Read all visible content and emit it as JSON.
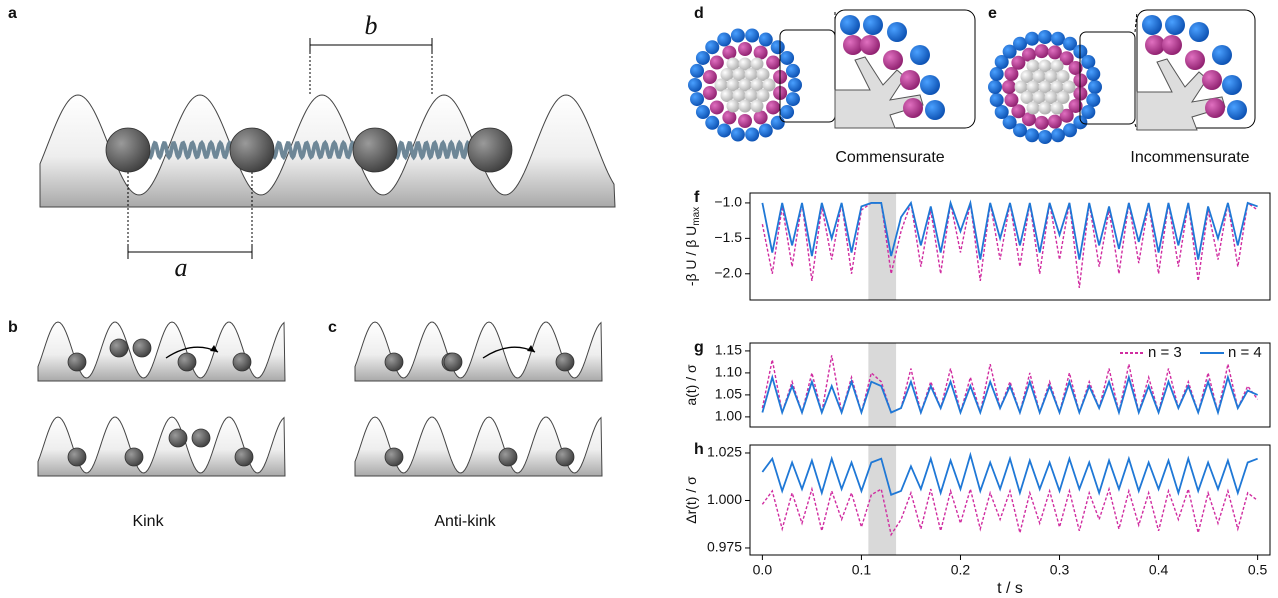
{
  "labels": {
    "panel_a": "a",
    "panel_b": "b",
    "panel_c": "c",
    "panel_d": "d",
    "panel_e": "e",
    "spacing_a": "a",
    "spacing_b": "b",
    "kink": "Kink",
    "anti_kink": "Anti-kink",
    "commensurate": "Commensurate",
    "incommensurate": "Incommensurate"
  },
  "chart_data": [
    {
      "type": "line",
      "panel": "f",
      "ylabel": "-β U / β U",
      "ylabel_sub": "max",
      "xlim": [
        -0.0125,
        0.5125
      ],
      "ylim": [
        -2.37,
        -0.86
      ],
      "yticks": [
        {
          "value": -1.0,
          "label": "−1.0"
        },
        {
          "value": -1.5,
          "label": "−1.5"
        },
        {
          "value": -2.0,
          "label": "−2.0"
        }
      ],
      "highlight": [
        0.107,
        0.135
      ],
      "x": [
        0,
        0.01,
        0.02,
        0.03,
        0.04,
        0.05,
        0.06,
        0.07,
        0.08,
        0.09,
        0.1,
        0.11,
        0.12,
        0.13,
        0.14,
        0.15,
        0.16,
        0.17,
        0.18,
        0.19,
        0.2,
        0.21,
        0.22,
        0.23,
        0.24,
        0.25,
        0.26,
        0.27,
        0.28,
        0.29,
        0.3,
        0.31,
        0.32,
        0.33,
        0.34,
        0.35,
        0.36,
        0.37,
        0.38,
        0.39,
        0.4,
        0.41,
        0.42,
        0.43,
        0.44,
        0.45,
        0.46,
        0.47,
        0.48,
        0.49,
        0.5
      ],
      "series": [
        {
          "color": "#d02ca0",
          "dashed": true,
          "values": [
            -1.3,
            -2.0,
            -1.05,
            -1.9,
            -1.0,
            -2.1,
            -1.05,
            -1.8,
            -1.0,
            -2.0,
            -1.1,
            -1.0,
            -1.0,
            -2.0,
            -1.4,
            -1.0,
            -1.9,
            -1.1,
            -2.0,
            -1.0,
            -1.7,
            -1.0,
            -2.1,
            -1.0,
            -1.8,
            -1.0,
            -1.9,
            -1.0,
            -2.0,
            -1.0,
            -1.8,
            -1.0,
            -2.2,
            -1.0,
            -1.9,
            -1.1,
            -2.0,
            -1.0,
            -1.85,
            -1.0,
            -2.0,
            -1.0,
            -1.9,
            -1.0,
            -2.1,
            -1.1,
            -1.8,
            -1.0,
            -1.9,
            -1.0,
            -1.1
          ]
        },
        {
          "color": "#1f78d6",
          "dashed": false,
          "values": [
            -1.0,
            -1.7,
            -1.0,
            -1.6,
            -1.0,
            -1.75,
            -1.0,
            -1.5,
            -1.0,
            -1.7,
            -1.05,
            -1.0,
            -1.0,
            -1.75,
            -1.2,
            -1.0,
            -1.6,
            -1.05,
            -1.7,
            -1.0,
            -1.4,
            -1.0,
            -1.8,
            -1.0,
            -1.5,
            -1.0,
            -1.6,
            -1.0,
            -1.7,
            -1.0,
            -1.45,
            -1.0,
            -1.8,
            -1.0,
            -1.6,
            -1.05,
            -1.65,
            -1.0,
            -1.55,
            -1.0,
            -1.7,
            -1.0,
            -1.6,
            -1.0,
            -1.8,
            -1.05,
            -1.5,
            -1.0,
            -1.6,
            -1.0,
            -1.05
          ]
        }
      ]
    },
    {
      "type": "line",
      "panel": "g",
      "ylabel": "a(t) / σ",
      "xlim": [
        -0.0125,
        0.5125
      ],
      "ylim": [
        0.977,
        1.168
      ],
      "yticks": [
        {
          "value": 1.0,
          "label": "1.00"
        },
        1.05,
        {
          "value": 1.1,
          "label": "1.10"
        },
        1.15
      ],
      "highlight": [
        0.107,
        0.135
      ],
      "legend": "upper right",
      "x": [
        0,
        0.01,
        0.02,
        0.03,
        0.04,
        0.05,
        0.06,
        0.07,
        0.08,
        0.09,
        0.1,
        0.11,
        0.12,
        0.13,
        0.14,
        0.15,
        0.16,
        0.17,
        0.18,
        0.19,
        0.2,
        0.21,
        0.22,
        0.23,
        0.24,
        0.25,
        0.26,
        0.27,
        0.28,
        0.29,
        0.3,
        0.31,
        0.32,
        0.33,
        0.34,
        0.35,
        0.36,
        0.37,
        0.38,
        0.39,
        0.4,
        0.41,
        0.42,
        0.43,
        0.44,
        0.45,
        0.46,
        0.47,
        0.48,
        0.49,
        0.5
      ],
      "series": [
        {
          "name": "n = 3",
          "color": "#d02ca0",
          "dashed": true,
          "values": [
            1.02,
            1.13,
            1.01,
            1.08,
            1.01,
            1.1,
            1.01,
            1.14,
            1.01,
            1.09,
            1.01,
            1.1,
            1.08,
            1.01,
            1.02,
            1.11,
            1.01,
            1.08,
            1.02,
            1.11,
            1.01,
            1.09,
            1.01,
            1.12,
            1.02,
            1.08,
            1.01,
            1.1,
            1.01,
            1.08,
            1.01,
            1.1,
            1.01,
            1.08,
            1.02,
            1.11,
            1.01,
            1.12,
            1.01,
            1.09,
            1.01,
            1.11,
            1.02,
            1.08,
            1.01,
            1.1,
            1.01,
            1.12,
            1.02,
            1.07,
            1.04
          ]
        },
        {
          "name": "n = 4",
          "color": "#1f78d6",
          "dashed": false,
          "values": [
            1.01,
            1.09,
            1.01,
            1.07,
            1.01,
            1.08,
            1.01,
            1.07,
            1.01,
            1.08,
            1.01,
            1.08,
            1.07,
            1.01,
            1.02,
            1.08,
            1.01,
            1.07,
            1.02,
            1.08,
            1.01,
            1.07,
            1.01,
            1.08,
            1.02,
            1.07,
            1.01,
            1.08,
            1.01,
            1.07,
            1.01,
            1.08,
            1.01,
            1.07,
            1.02,
            1.08,
            1.01,
            1.09,
            1.01,
            1.07,
            1.01,
            1.08,
            1.02,
            1.07,
            1.01,
            1.08,
            1.01,
            1.09,
            1.02,
            1.06,
            1.05
          ]
        }
      ]
    },
    {
      "type": "line",
      "panel": "h",
      "ylabel": "Δr(t) / σ",
      "xlabel": "t / s",
      "xlim": [
        -0.0125,
        0.5125
      ],
      "ylim": [
        0.9713,
        1.0292
      ],
      "xticks": [
        {
          "value": 0,
          "label": "0.0"
        },
        0.1,
        0.2,
        0.3,
        0.4,
        0.5
      ],
      "yticks": [
        0.975,
        {
          "value": 1.0,
          "label": "1.000"
        },
        1.025
      ],
      "highlight": [
        0.107,
        0.135
      ],
      "x": [
        0,
        0.01,
        0.02,
        0.03,
        0.04,
        0.05,
        0.06,
        0.07,
        0.08,
        0.09,
        0.1,
        0.11,
        0.12,
        0.13,
        0.14,
        0.15,
        0.16,
        0.17,
        0.18,
        0.19,
        0.2,
        0.21,
        0.22,
        0.23,
        0.24,
        0.25,
        0.26,
        0.27,
        0.28,
        0.29,
        0.3,
        0.31,
        0.32,
        0.33,
        0.34,
        0.35,
        0.36,
        0.37,
        0.38,
        0.39,
        0.4,
        0.41,
        0.42,
        0.43,
        0.44,
        0.45,
        0.46,
        0.47,
        0.48,
        0.49,
        0.5
      ],
      "series": [
        {
          "color": "#d02ca0",
          "dashed": true,
          "values": [
            0.998,
            1.005,
            0.985,
            1.004,
            0.988,
            1.006,
            0.984,
            1.005,
            0.99,
            1.004,
            0.986,
            1.003,
            1.006,
            0.982,
            0.99,
            1.004,
            0.985,
            1.006,
            0.984,
            1.005,
            0.988,
            1.006,
            0.985,
            1.004,
            0.99,
            1.005,
            0.983,
            1.004,
            0.988,
            1.005,
            0.986,
            1.005,
            0.984,
            1.004,
            0.99,
            1.006,
            0.985,
            1.005,
            0.987,
            1.004,
            0.984,
            1.005,
            0.99,
            1.006,
            0.983,
            1.004,
            0.988,
            1.005,
            0.985,
            1.004,
            1.0
          ]
        },
        {
          "color": "#1f78d6",
          "dashed": false,
          "values": [
            1.015,
            1.022,
            1.005,
            1.02,
            1.006,
            1.021,
            1.004,
            1.022,
            1.006,
            1.02,
            1.005,
            1.02,
            1.022,
            1.003,
            1.005,
            1.018,
            1.006,
            1.022,
            1.004,
            1.021,
            1.006,
            1.024,
            1.005,
            1.02,
            1.006,
            1.022,
            1.004,
            1.021,
            1.006,
            1.02,
            1.005,
            1.022,
            1.006,
            1.02,
            1.004,
            1.021,
            1.006,
            1.022,
            1.005,
            1.02,
            1.006,
            1.021,
            1.004,
            1.022,
            1.005,
            1.02,
            1.006,
            1.021,
            1.004,
            1.02,
            1.022
          ]
        }
      ]
    }
  ]
}
